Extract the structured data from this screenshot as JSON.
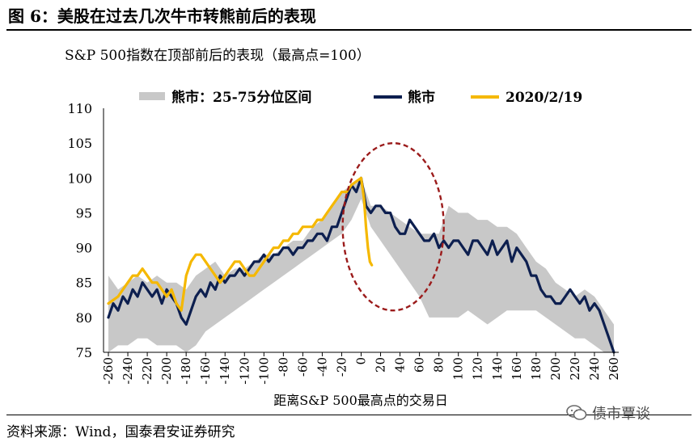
{
  "figure": {
    "title": "图 6：美股在过去几次牛市转熊前后的表现",
    "source": "资料来源：Wind，国泰君安证券研究",
    "watermark": "债市覃谈",
    "watermark_icon": "wechat-icon"
  },
  "chart_data": {
    "type": "line",
    "subtitle": "S&P 500指数在顶部前后的表现（最高点=100）",
    "xlabel": "距离S&P 500最高点的交易日",
    "ylabel": "",
    "xlim": [
      -265,
      265
    ],
    "ylim": [
      75,
      110
    ],
    "x_ticks": [
      -260,
      -240,
      -220,
      -200,
      -180,
      -160,
      -140,
      -120,
      -100,
      -80,
      -60,
      -40,
      -20,
      0,
      20,
      40,
      60,
      80,
      100,
      120,
      140,
      160,
      180,
      200,
      220,
      240,
      260
    ],
    "y_ticks": [
      75,
      80,
      85,
      90,
      95,
      100,
      105,
      110
    ],
    "grid": false,
    "legend_position": "top",
    "colors": {
      "band": "#c8c8c8",
      "bear": "#0d1f4f",
      "current": "#f5b800",
      "ellipse": "#9b1b1b"
    },
    "band": {
      "name": "熊市：25-75分位区间",
      "x": [
        -260,
        -250,
        -240,
        -230,
        -220,
        -210,
        -200,
        -190,
        -180,
        -170,
        -160,
        -150,
        -140,
        -130,
        -120,
        -110,
        -100,
        -90,
        -80,
        -70,
        -60,
        -50,
        -40,
        -30,
        -20,
        -10,
        0,
        10,
        20,
        30,
        40,
        50,
        60,
        70,
        80,
        90,
        100,
        110,
        120,
        130,
        140,
        150,
        160,
        170,
        180,
        190,
        200,
        210,
        220,
        230,
        240,
        250,
        260
      ],
      "upper": [
        86,
        84,
        85,
        86,
        85,
        86,
        85,
        85,
        84,
        86,
        87,
        88,
        86,
        87,
        87,
        88,
        89,
        89,
        90,
        91,
        91,
        93,
        94,
        96,
        98,
        99,
        100,
        96,
        96,
        95,
        94,
        93,
        92,
        92,
        92,
        96,
        95,
        95,
        94,
        94,
        93,
        93,
        92,
        90,
        88,
        87,
        85,
        84,
        83,
        84,
        83,
        81,
        79
      ],
      "lower": [
        75,
        76,
        76,
        77,
        77,
        76,
        76,
        76,
        75,
        76,
        78,
        79,
        80,
        81,
        82,
        83,
        84,
        85,
        86,
        87,
        88,
        89,
        90,
        91,
        92,
        94,
        97,
        93,
        91,
        89,
        87,
        85,
        83,
        80,
        80,
        80,
        80,
        81,
        80,
        79,
        80,
        81,
        81,
        81,
        81,
        80,
        79,
        78,
        77,
        77,
        76,
        75,
        75
      ]
    },
    "series": [
      {
        "name": "熊市",
        "x": [
          -260,
          -255,
          -250,
          -245,
          -240,
          -235,
          -230,
          -225,
          -220,
          -215,
          -210,
          -205,
          -200,
          -195,
          -190,
          -185,
          -180,
          -175,
          -170,
          -165,
          -160,
          -155,
          -150,
          -145,
          -140,
          -135,
          -130,
          -125,
          -120,
          -115,
          -110,
          -105,
          -100,
          -95,
          -90,
          -85,
          -80,
          -75,
          -70,
          -65,
          -60,
          -55,
          -50,
          -45,
          -40,
          -35,
          -30,
          -25,
          -20,
          -15,
          -10,
          -5,
          0,
          5,
          10,
          15,
          20,
          25,
          30,
          35,
          40,
          45,
          50,
          55,
          60,
          65,
          70,
          75,
          80,
          85,
          90,
          95,
          100,
          105,
          110,
          115,
          120,
          125,
          130,
          135,
          140,
          145,
          150,
          155,
          160,
          165,
          170,
          175,
          180,
          185,
          190,
          195,
          200,
          205,
          210,
          215,
          220,
          225,
          230,
          235,
          240,
          245,
          250,
          255,
          260
        ],
        "values": [
          80,
          82,
          81,
          83,
          82,
          84,
          83,
          85,
          84,
          83,
          84,
          82,
          84,
          83,
          82,
          80,
          79,
          81,
          83,
          84,
          83,
          85,
          84,
          86,
          85,
          86,
          86,
          87,
          86,
          87,
          88,
          88,
          89,
          88,
          89,
          89,
          90,
          90,
          89,
          90,
          90,
          91,
          91,
          92,
          92,
          91,
          93,
          93,
          95,
          97,
          99,
          98,
          100,
          96,
          95,
          96,
          96,
          95,
          95,
          93,
          92,
          92,
          94,
          93,
          92,
          91,
          91,
          92,
          90,
          91,
          90,
          91,
          91,
          90,
          89,
          91,
          91,
          90,
          89,
          91,
          89,
          90,
          91,
          88,
          90,
          89,
          88,
          86,
          86,
          84,
          83,
          83,
          82,
          82,
          83,
          84,
          83,
          82,
          83,
          81,
          82,
          81,
          79,
          77,
          75
        ]
      },
      {
        "name": "2020/2/19",
        "x": [
          -260,
          -255,
          -250,
          -245,
          -240,
          -235,
          -230,
          -225,
          -220,
          -215,
          -210,
          -205,
          -200,
          -195,
          -190,
          -185,
          -180,
          -175,
          -170,
          -165,
          -160,
          -155,
          -150,
          -145,
          -140,
          -135,
          -130,
          -125,
          -120,
          -115,
          -110,
          -105,
          -100,
          -95,
          -90,
          -85,
          -80,
          -75,
          -70,
          -65,
          -60,
          -55,
          -50,
          -45,
          -40,
          -35,
          -30,
          -25,
          -20,
          -15,
          -10,
          -5,
          0,
          3,
          5,
          7,
          9,
          11
        ],
        "values": [
          82,
          82.5,
          83,
          84,
          85,
          86,
          86,
          87,
          86,
          85,
          85,
          84,
          83,
          84,
          82,
          81,
          86,
          88,
          89,
          89,
          88,
          87,
          86,
          85,
          86,
          87,
          88,
          88,
          87,
          86,
          86,
          87,
          88,
          89,
          90,
          90,
          91,
          91,
          92,
          92,
          93,
          93,
          93,
          94,
          94,
          95,
          96,
          97,
          98,
          98,
          99,
          99.5,
          100,
          97,
          93,
          90,
          88,
          87.5
        ]
      }
    ]
  }
}
